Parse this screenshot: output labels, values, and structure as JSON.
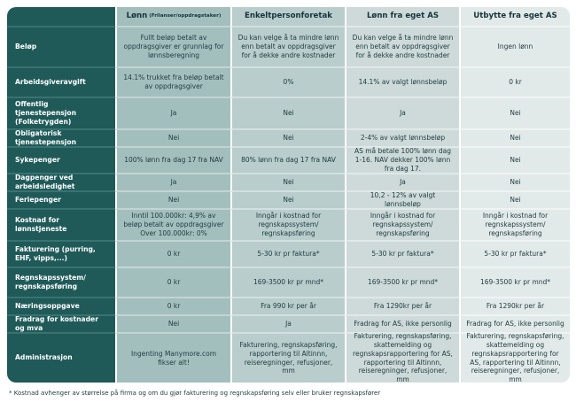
{
  "colors": {
    "label_column_bg": "#1f5a59",
    "label_divider": "#387372",
    "column_bg": [
      "#a3bfbd",
      "#b8cdcc",
      "#cddad9",
      "#e2eae9"
    ],
    "column_divider": [
      "#c3d4d2",
      "#d3e0df",
      "#e0e9e8",
      "#eff4f3"
    ],
    "column_separator": "#ffffff",
    "label_text": "#ffffff",
    "cell_text": "#1d3a3f"
  },
  "table": {
    "columns": [
      {
        "label": "Lønn",
        "sub": "(Frilanser/oppdragstaker)"
      },
      {
        "label": "Enkeltpersonforetak",
        "sub": ""
      },
      {
        "label": "Lønn fra eget AS",
        "sub": ""
      },
      {
        "label": "Utbytte fra eget AS",
        "sub": ""
      }
    ],
    "rows": [
      {
        "label": "Beløp",
        "values": [
          "Fullt beløp betalt av oppdragsgiver er grunnlag for lønnsberegning",
          "Du kan velge å ta mindre lønn enn betalt av oppdragsgiver for å dekke andre kostnader",
          "Du kan velge å ta mindre lønn enn betalt av oppdragsgiver for å dekke andre kostnader",
          "Ingen lønn"
        ]
      },
      {
        "label": "Arbeidsgiveravgift",
        "values": [
          "14.1% trukket fra beløp betalt av oppdragsgiver",
          "0%",
          "14.1% av valgt lønnsbeløp",
          "0 kr"
        ]
      },
      {
        "label": "Offentlig tjenestepensjon (Folketrygden)",
        "values": [
          "Ja",
          "Nei",
          "Ja",
          "Nei"
        ]
      },
      {
        "label": "Obligatorisk tjenestepensjon",
        "values": [
          "Nei",
          "Nei",
          "2-4% av valgt lønnsbeløp",
          "Nei"
        ]
      },
      {
        "label": "Sykepenger",
        "values": [
          "100% lønn fra dag 17 fra NAV",
          "80% lønn fra dag 17 fra NAV",
          "AS må betale 100% lønn dag 1-16. NAV dekker 100% lønn fra dag 17.",
          "Nei"
        ]
      },
      {
        "label": "Dagpenger ved arbeidsledighet",
        "values": [
          "Ja",
          "Nei",
          "Ja",
          "Nei"
        ]
      },
      {
        "label": "Feriepenger",
        "values": [
          "Nei",
          "Nei",
          "10,2 - 12% av valgt lønnsbeløp",
          "Nei"
        ]
      },
      {
        "label": "Kostnad for lønnstjeneste",
        "values": [
          "Inntil 100.000kr: 4,9% av beløp betalt av oppdragsgiver Over 100.000kr: 0%",
          "Inngår i kostnad for regnskapssystem/ regnskapsføring",
          "Inngår i kostnad for regnskapssystem/ regnskapsføring",
          "Inngår i kostnad for regnskapssystem/ regnskapsføring"
        ]
      },
      {
        "label": "Fakturering (purring, EHF, vipps,...)",
        "values": [
          "0 kr",
          "5-30 kr pr faktura*",
          "5-30 kr pr faktura*",
          "5-30 kr pr faktura*"
        ]
      },
      {
        "label": "Regnskapssystem/ regnskapsføring",
        "values": [
          "0 kr",
          "169-3500 kr pr mnd*",
          "169-3500 kr pr mnd*",
          "169-3500 kr pr mnd*"
        ]
      },
      {
        "label": "Næringsoppgave",
        "values": [
          "0 kr",
          "Fra 990 kr per år",
          "Fra 1290kr per år",
          "Fra 1290kr per år"
        ]
      },
      {
        "label": "Fradrag for kostnader og mva",
        "values": [
          "Nei",
          "Ja",
          "Fradrag for AS, ikke personlig",
          "Fradrag for AS, ikke personlig"
        ]
      },
      {
        "label": "Administrasjon",
        "values": [
          "Ingenting Manymore.com fikser alt!",
          "Fakturering, regnskapsføring, rapportering til Altinnn, reiseregninger, refusjoner, mm",
          "Fakturering, regnskapsføring, skattemelding og regnskapsrapportering for AS, rapportering til Altinnn, reiseregninger, refusjoner, mm",
          "Fakturering, regnskapsføring, skattemelding og regnskapsrapportering for AS, rapportering til Altinnn, reiseregninger, refusjoner, mm"
        ]
      }
    ]
  },
  "footnote": "* Kostnad avhenger av størrelse på firma og om du gjør fakturering og regnskapsføring selv eller bruker regnskapsfører"
}
